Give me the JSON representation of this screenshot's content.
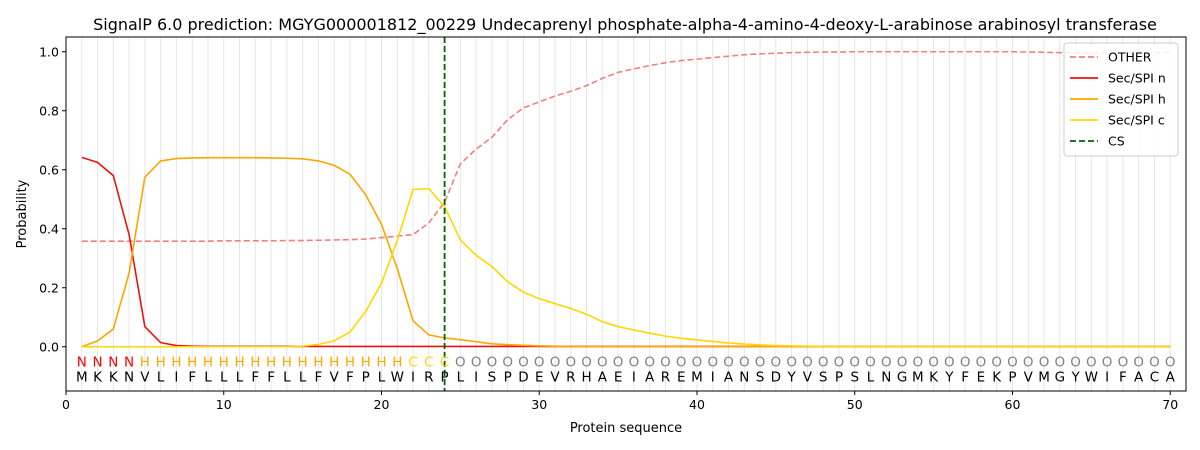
{
  "chart_data": {
    "type": "line",
    "title": "SignalP 6.0 prediction: MGYG000001812_00229 Undecaprenyl phosphate-alpha-4-amino-4-deoxy-L-arabinose arabinosyl transferase",
    "xlabel": "Protein sequence",
    "ylabel": "Probability",
    "xlim": [
      0,
      71
    ],
    "ylim": [
      -0.15,
      1.05
    ],
    "x_ticks": [
      0,
      10,
      20,
      30,
      40,
      50,
      60,
      70
    ],
    "y_ticks": [
      0.0,
      0.2,
      0.4,
      0.6,
      0.8,
      1.0
    ],
    "x_tick_labels": [
      "0",
      "10",
      "20",
      "30",
      "40",
      "50",
      "60",
      "70"
    ],
    "y_tick_labels": [
      "0.0",
      "0.2",
      "0.4",
      "0.6",
      "0.8",
      "1.0"
    ],
    "grid": "vertical lines at every position",
    "legend_position": "top-right",
    "x": [
      1,
      2,
      3,
      4,
      5,
      6,
      7,
      8,
      9,
      10,
      11,
      12,
      13,
      14,
      15,
      16,
      17,
      18,
      19,
      20,
      21,
      22,
      23,
      24,
      25,
      26,
      27,
      28,
      29,
      30,
      31,
      32,
      33,
      34,
      35,
      36,
      37,
      38,
      39,
      40,
      41,
      42,
      43,
      44,
      45,
      46,
      47,
      48,
      49,
      50,
      51,
      52,
      53,
      54,
      55,
      56,
      57,
      58,
      59,
      60,
      61,
      62,
      63,
      64,
      65,
      66,
      67,
      68,
      69,
      70
    ],
    "sequence": [
      "M",
      "K",
      "K",
      "N",
      "V",
      "L",
      "I",
      "F",
      "L",
      "L",
      "L",
      "F",
      "F",
      "L",
      "L",
      "F",
      "V",
      "F",
      "P",
      "L",
      "W",
      "I",
      "R",
      "P",
      "L",
      "I",
      "S",
      "P",
      "D",
      "E",
      "V",
      "R",
      "H",
      "A",
      "E",
      "I",
      "A",
      "R",
      "E",
      "M",
      "I",
      "A",
      "N",
      "S",
      "D",
      "Y",
      "V",
      "S",
      "P",
      "S",
      "L",
      "N",
      "G",
      "M",
      "K",
      "Y",
      "F",
      "E",
      "K",
      "P",
      "V",
      "M",
      "G",
      "Y",
      "W",
      "I",
      "F",
      "A",
      "C",
      "A"
    ],
    "region_labels": [
      "N",
      "N",
      "N",
      "N",
      "H",
      "H",
      "H",
      "H",
      "H",
      "H",
      "H",
      "H",
      "H",
      "H",
      "H",
      "H",
      "H",
      "H",
      "H",
      "H",
      "H",
      "C",
      "C",
      "C",
      "O",
      "O",
      "O",
      "O",
      "O",
      "O",
      "O",
      "O",
      "O",
      "O",
      "O",
      "O",
      "O",
      "O",
      "O",
      "O",
      "O",
      "O",
      "O",
      "O",
      "O",
      "O",
      "O",
      "O",
      "O",
      "O",
      "O",
      "O",
      "O",
      "O",
      "O",
      "O",
      "O",
      "O",
      "O",
      "O",
      "O",
      "O",
      "O",
      "O",
      "O",
      "O",
      "O",
      "O",
      "O",
      "O"
    ],
    "region_colors": {
      "N": "#ff0000",
      "H": "#ffa500",
      "C": "#ffd700",
      "O": "#808080"
    },
    "cs_position": 24,
    "series": [
      {
        "name": "OTHER",
        "color": "#f08080",
        "dash": true,
        "values": [
          0.358,
          0.358,
          0.358,
          0.358,
          0.358,
          0.358,
          0.358,
          0.358,
          0.358,
          0.359,
          0.359,
          0.359,
          0.359,
          0.36,
          0.36,
          0.361,
          0.362,
          0.363,
          0.365,
          0.37,
          0.375,
          0.38,
          0.42,
          0.49,
          0.62,
          0.67,
          0.71,
          0.77,
          0.81,
          0.83,
          0.85,
          0.866,
          0.885,
          0.91,
          0.93,
          0.942,
          0.953,
          0.963,
          0.97,
          0.975,
          0.98,
          0.985,
          0.99,
          0.993,
          0.995,
          0.997,
          0.998,
          0.999,
          0.999,
          1.0,
          1.0,
          1.0,
          1.0,
          1.0,
          1.0,
          1.0,
          1.0,
          1.0,
          1.0,
          1.0,
          0.999,
          0.998,
          0.997,
          0.996,
          0.996,
          0.996,
          0.996,
          0.997,
          0.997,
          0.997
        ]
      },
      {
        "name": "Sec/SPI n",
        "color": "#ee1111",
        "dash": false,
        "values": [
          0.642,
          0.625,
          0.58,
          0.38,
          0.068,
          0.014,
          0.004,
          0.002,
          0.001,
          0.001,
          0.001,
          0.001,
          0.001,
          0.001,
          0.001,
          0.001,
          0.001,
          0.001,
          0.001,
          0.001,
          0.001,
          0.001,
          0.001,
          0.001,
          0.001,
          0.001,
          0.001,
          0.001,
          0.001,
          0.001,
          0.001,
          0.001,
          0.001,
          0.001,
          0.001,
          0.001,
          0.001,
          0.001,
          0.001,
          0.001,
          0.001,
          0.001,
          0.001,
          0.001,
          0.001,
          0.001,
          0.001,
          0.001,
          0.001,
          0.001,
          0.001,
          0.001,
          0.001,
          0.001,
          0.001,
          0.001,
          0.001,
          0.001,
          0.001,
          0.001,
          0.001,
          0.001,
          0.001,
          0.001,
          0.001,
          0.001,
          0.001,
          0.001,
          0.001,
          0.001
        ]
      },
      {
        "name": "Sec/SPI h",
        "color": "#ffa500",
        "dash": false,
        "values": [
          0.0,
          0.02,
          0.06,
          0.25,
          0.575,
          0.63,
          0.638,
          0.64,
          0.641,
          0.641,
          0.641,
          0.641,
          0.64,
          0.639,
          0.637,
          0.63,
          0.615,
          0.585,
          0.515,
          0.415,
          0.265,
          0.088,
          0.04,
          0.03,
          0.024,
          0.017,
          0.01,
          0.007,
          0.005,
          0.003,
          0.002,
          0.001,
          0.001,
          0.001,
          0.001,
          0.001,
          0.001,
          0.001,
          0.001,
          0.001,
          0.001,
          0.001,
          0.001,
          0.001,
          0.001,
          0.001,
          0.001,
          0.001,
          0.001,
          0.001,
          0.001,
          0.001,
          0.001,
          0.001,
          0.001,
          0.001,
          0.001,
          0.001,
          0.001,
          0.001,
          0.001,
          0.001,
          0.001,
          0.001,
          0.001,
          0.001,
          0.001,
          0.001,
          0.001,
          0.001
        ]
      },
      {
        "name": "Sec/SPI c",
        "color": "#ffd700",
        "dash": false,
        "values": [
          0.0,
          0.0,
          0.0,
          0.0,
          0.0,
          0.0,
          0.0,
          0.0,
          0.0,
          0.0,
          0.0,
          0.0,
          0.0,
          0.0,
          0.002,
          0.008,
          0.02,
          0.05,
          0.12,
          0.215,
          0.36,
          0.533,
          0.536,
          0.475,
          0.362,
          0.31,
          0.272,
          0.22,
          0.185,
          0.163,
          0.146,
          0.13,
          0.11,
          0.085,
          0.068,
          0.057,
          0.046,
          0.036,
          0.029,
          0.023,
          0.018,
          0.013,
          0.009,
          0.006,
          0.004,
          0.003,
          0.002,
          0.001,
          0.001,
          0.001,
          0.001,
          0.001,
          0.001,
          0.001,
          0.001,
          0.001,
          0.001,
          0.001,
          0.001,
          0.001,
          0.001,
          0.001,
          0.001,
          0.001,
          0.001,
          0.001,
          0.001,
          0.001,
          0.001,
          0.001
        ]
      }
    ],
    "legend": [
      {
        "label": "OTHER",
        "color": "#f08080",
        "style": "dashed"
      },
      {
        "label": "Sec/SPI n",
        "color": "#ee1111",
        "style": "solid"
      },
      {
        "label": "Sec/SPI h",
        "color": "#ffa500",
        "style": "solid"
      },
      {
        "label": "Sec/SPI c",
        "color": "#ffd700",
        "style": "solid"
      },
      {
        "label": "CS",
        "color": "#006400",
        "style": "dashed"
      }
    ]
  }
}
